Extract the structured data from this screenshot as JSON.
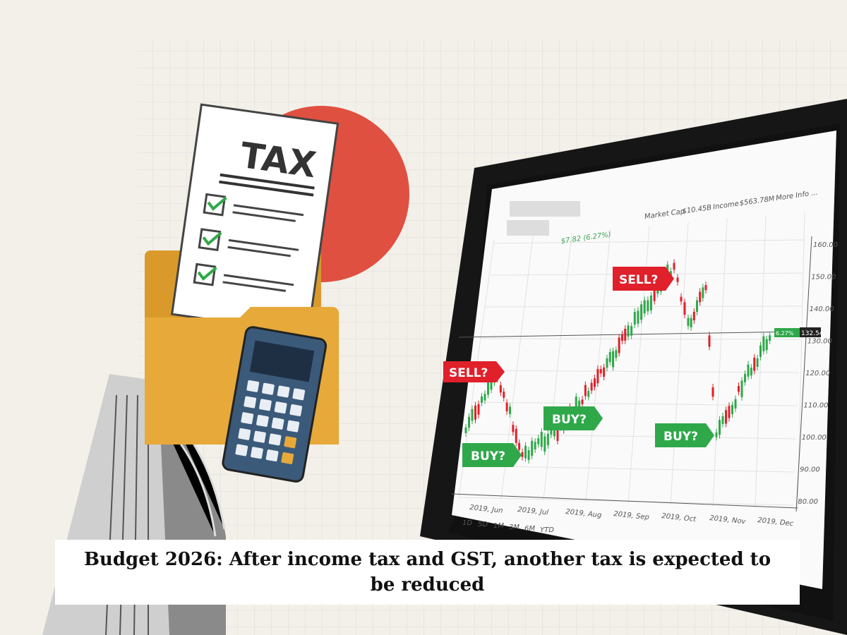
{
  "headline": "Budget 2026: After income tax and GST, another tax is expected to be reduced",
  "illustration": {
    "tax_document_title": "TAX",
    "stock_header": {
      "change": "$7.82 (6.27%)",
      "market_cap_label": "Market Cap",
      "market_cap_value": "$10.45B",
      "income_label": "Income",
      "income_value": "$563.78M",
      "more_info": "More Info ..."
    },
    "price_axis": [
      "160.00",
      "150.00",
      "140.00",
      "130.00",
      "120.00",
      "110.00",
      "100.00",
      "90.00",
      "80.00"
    ],
    "current_price": "132.54",
    "current_change": "6.27%",
    "date_axis": [
      "2019, Jun",
      "2019, Jul",
      "2019, Aug",
      "2019, Sep",
      "2019, Oct",
      "2019, Nov",
      "2019, Dec"
    ],
    "range_buttons": [
      "1D",
      "5D",
      "1M",
      "3M",
      "6M",
      "YTD"
    ],
    "signals": [
      {
        "label": "SELL?",
        "kind": "sell"
      },
      {
        "label": "SELL?",
        "kind": "sell"
      },
      {
        "label": "BUY?",
        "kind": "buy"
      },
      {
        "label": "BUY?",
        "kind": "buy"
      },
      {
        "label": "BUY?",
        "kind": "buy"
      }
    ],
    "colors": {
      "sell": "#e0202a",
      "buy": "#2fa84a",
      "circle": "#e05040",
      "folder": "#e6a93a",
      "calculator": "#3b5a7a"
    }
  }
}
